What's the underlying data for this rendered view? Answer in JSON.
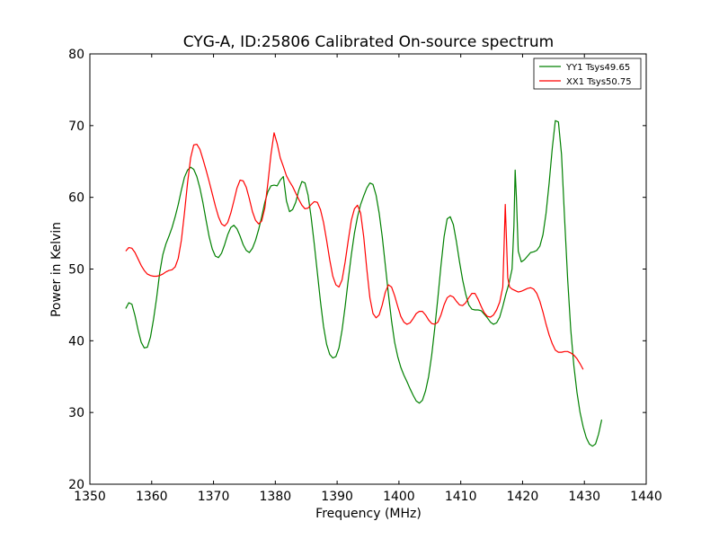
{
  "chart_data": {
    "type": "line",
    "title": "CYG-A, ID:25806 Calibrated On-source spectrum",
    "xlabel": "Frequency (MHz)",
    "ylabel": "Power in Kelvin",
    "xlim": [
      1350,
      1440
    ],
    "ylim": [
      20,
      80
    ],
    "xticks": [
      1350,
      1360,
      1370,
      1380,
      1390,
      1400,
      1410,
      1420,
      1430,
      1440
    ],
    "yticks": [
      20,
      30,
      40,
      50,
      60,
      70,
      80
    ],
    "grid": false,
    "legend_position": "top-right",
    "series": [
      {
        "name": "YY1 Tsys49.65",
        "color": "#008000",
        "points": [
          [
            1355.8,
            44.5
          ],
          [
            1356.3,
            45.3
          ],
          [
            1356.8,
            45.1
          ],
          [
            1357.3,
            43.5
          ],
          [
            1357.8,
            41.5
          ],
          [
            1358.3,
            39.8
          ],
          [
            1358.8,
            39.0
          ],
          [
            1359.3,
            39.1
          ],
          [
            1359.8,
            40.5
          ],
          [
            1360.3,
            43.0
          ],
          [
            1360.8,
            46.0
          ],
          [
            1361.3,
            49.5
          ],
          [
            1361.8,
            52.0
          ],
          [
            1362.3,
            53.5
          ],
          [
            1362.8,
            54.6
          ],
          [
            1363.3,
            55.8
          ],
          [
            1363.8,
            57.3
          ],
          [
            1364.3,
            59.0
          ],
          [
            1364.8,
            61.0
          ],
          [
            1365.3,
            62.8
          ],
          [
            1365.8,
            63.8
          ],
          [
            1366.3,
            64.2
          ],
          [
            1366.8,
            63.9
          ],
          [
            1367.3,
            62.9
          ],
          [
            1367.8,
            61.3
          ],
          [
            1368.3,
            59.2
          ],
          [
            1368.8,
            56.8
          ],
          [
            1369.3,
            54.5
          ],
          [
            1369.8,
            52.8
          ],
          [
            1370.3,
            51.8
          ],
          [
            1370.8,
            51.6
          ],
          [
            1371.3,
            52.2
          ],
          [
            1371.8,
            53.4
          ],
          [
            1372.3,
            54.8
          ],
          [
            1372.8,
            55.8
          ],
          [
            1373.3,
            56.1
          ],
          [
            1373.8,
            55.6
          ],
          [
            1374.3,
            54.6
          ],
          [
            1374.8,
            53.4
          ],
          [
            1375.3,
            52.6
          ],
          [
            1375.8,
            52.3
          ],
          [
            1376.3,
            52.9
          ],
          [
            1376.8,
            54.0
          ],
          [
            1377.3,
            55.5
          ],
          [
            1377.8,
            57.3
          ],
          [
            1378.3,
            59.3
          ],
          [
            1378.8,
            60.8
          ],
          [
            1379.3,
            61.6
          ],
          [
            1379.8,
            61.7
          ],
          [
            1380.3,
            61.6
          ],
          [
            1380.8,
            62.4
          ],
          [
            1381.3,
            62.9
          ],
          [
            1381.8,
            59.5
          ],
          [
            1382.3,
            58.0
          ],
          [
            1382.8,
            58.3
          ],
          [
            1383.3,
            59.3
          ],
          [
            1383.8,
            61.0
          ],
          [
            1384.3,
            62.2
          ],
          [
            1384.8,
            62.0
          ],
          [
            1385.3,
            60.3
          ],
          [
            1385.8,
            57.2
          ],
          [
            1386.3,
            53.5
          ],
          [
            1386.8,
            49.5
          ],
          [
            1387.3,
            45.5
          ],
          [
            1387.8,
            42.0
          ],
          [
            1388.3,
            39.5
          ],
          [
            1388.8,
            38.1
          ],
          [
            1389.3,
            37.6
          ],
          [
            1389.8,
            37.8
          ],
          [
            1390.3,
            39.0
          ],
          [
            1390.8,
            41.5
          ],
          [
            1391.3,
            44.8
          ],
          [
            1391.8,
            48.5
          ],
          [
            1392.3,
            52.0
          ],
          [
            1392.8,
            55.0
          ],
          [
            1393.3,
            57.3
          ],
          [
            1393.8,
            59.0
          ],
          [
            1394.3,
            60.2
          ],
          [
            1394.8,
            61.3
          ],
          [
            1395.3,
            62.0
          ],
          [
            1395.8,
            61.8
          ],
          [
            1396.3,
            60.3
          ],
          [
            1396.8,
            57.8
          ],
          [
            1397.3,
            54.5
          ],
          [
            1397.8,
            50.5
          ],
          [
            1398.3,
            46.5
          ],
          [
            1398.8,
            42.8
          ],
          [
            1399.3,
            39.8
          ],
          [
            1399.8,
            37.8
          ],
          [
            1400.3,
            36.3
          ],
          [
            1400.8,
            35.2
          ],
          [
            1401.3,
            34.3
          ],
          [
            1401.8,
            33.3
          ],
          [
            1402.3,
            32.4
          ],
          [
            1402.8,
            31.6
          ],
          [
            1403.3,
            31.3
          ],
          [
            1403.8,
            31.7
          ],
          [
            1404.3,
            33.0
          ],
          [
            1404.8,
            35.0
          ],
          [
            1405.3,
            38.0
          ],
          [
            1405.8,
            41.8
          ],
          [
            1406.3,
            46.0
          ],
          [
            1406.8,
            50.5
          ],
          [
            1407.3,
            54.5
          ],
          [
            1407.8,
            57.0
          ],
          [
            1408.3,
            57.3
          ],
          [
            1408.8,
            56.2
          ],
          [
            1409.3,
            53.8
          ],
          [
            1409.8,
            51.0
          ],
          [
            1410.3,
            48.5
          ],
          [
            1410.8,
            46.5
          ],
          [
            1411.3,
            45.0
          ],
          [
            1411.8,
            44.4
          ],
          [
            1412.3,
            44.3
          ],
          [
            1412.8,
            44.3
          ],
          [
            1413.3,
            44.2
          ],
          [
            1413.8,
            43.7
          ],
          [
            1414.3,
            43.2
          ],
          [
            1414.8,
            42.6
          ],
          [
            1415.3,
            42.3
          ],
          [
            1415.8,
            42.5
          ],
          [
            1416.3,
            43.3
          ],
          [
            1416.8,
            44.8
          ],
          [
            1417.3,
            46.5
          ],
          [
            1417.8,
            48.0
          ],
          [
            1418.3,
            50.0
          ],
          [
            1418.6,
            56.0
          ],
          [
            1418.8,
            63.8
          ],
          [
            1419.0,
            60.0
          ],
          [
            1419.3,
            52.5
          ],
          [
            1419.8,
            51.0
          ],
          [
            1420.3,
            51.3
          ],
          [
            1420.8,
            51.8
          ],
          [
            1421.3,
            52.3
          ],
          [
            1421.8,
            52.4
          ],
          [
            1422.3,
            52.6
          ],
          [
            1422.8,
            53.2
          ],
          [
            1423.3,
            54.8
          ],
          [
            1423.8,
            57.8
          ],
          [
            1424.3,
            62.0
          ],
          [
            1424.8,
            66.8
          ],
          [
            1425.3,
            70.7
          ],
          [
            1425.8,
            70.5
          ],
          [
            1426.3,
            66.0
          ],
          [
            1426.8,
            57.0
          ],
          [
            1427.3,
            48.5
          ],
          [
            1427.8,
            41.5
          ],
          [
            1428.3,
            36.5
          ],
          [
            1428.8,
            32.8
          ],
          [
            1429.3,
            30.0
          ],
          [
            1429.8,
            28.0
          ],
          [
            1430.3,
            26.5
          ],
          [
            1430.8,
            25.6
          ],
          [
            1431.3,
            25.3
          ],
          [
            1431.8,
            25.6
          ],
          [
            1432.3,
            27.0
          ],
          [
            1432.8,
            29.0
          ]
        ]
      },
      {
        "name": "XX1 Tsys50.75",
        "color": "#ff0000",
        "points": [
          [
            1355.8,
            52.5
          ],
          [
            1356.3,
            53.0
          ],
          [
            1356.8,
            52.9
          ],
          [
            1357.3,
            52.3
          ],
          [
            1357.8,
            51.4
          ],
          [
            1358.3,
            50.5
          ],
          [
            1358.8,
            49.8
          ],
          [
            1359.3,
            49.3
          ],
          [
            1359.8,
            49.1
          ],
          [
            1360.3,
            49.0
          ],
          [
            1360.8,
            49.0
          ],
          [
            1361.3,
            49.1
          ],
          [
            1361.8,
            49.3
          ],
          [
            1362.3,
            49.6
          ],
          [
            1362.8,
            49.8
          ],
          [
            1363.3,
            49.9
          ],
          [
            1363.8,
            50.3
          ],
          [
            1364.3,
            51.5
          ],
          [
            1364.8,
            54.0
          ],
          [
            1365.3,
            57.8
          ],
          [
            1365.8,
            62.0
          ],
          [
            1366.3,
            65.5
          ],
          [
            1366.8,
            67.3
          ],
          [
            1367.3,
            67.4
          ],
          [
            1367.8,
            66.7
          ],
          [
            1368.3,
            65.3
          ],
          [
            1368.8,
            63.8
          ],
          [
            1369.3,
            62.2
          ],
          [
            1369.8,
            60.5
          ],
          [
            1370.3,
            58.8
          ],
          [
            1370.8,
            57.3
          ],
          [
            1371.3,
            56.3
          ],
          [
            1371.8,
            56.0
          ],
          [
            1372.3,
            56.5
          ],
          [
            1372.8,
            57.8
          ],
          [
            1373.3,
            59.5
          ],
          [
            1373.8,
            61.3
          ],
          [
            1374.3,
            62.4
          ],
          [
            1374.8,
            62.3
          ],
          [
            1375.3,
            61.4
          ],
          [
            1375.8,
            59.8
          ],
          [
            1376.3,
            58.0
          ],
          [
            1376.8,
            56.8
          ],
          [
            1377.3,
            56.3
          ],
          [
            1377.8,
            56.7
          ],
          [
            1378.3,
            58.5
          ],
          [
            1378.8,
            62.0
          ],
          [
            1379.3,
            66.0
          ],
          [
            1379.8,
            69.0
          ],
          [
            1380.3,
            67.5
          ],
          [
            1380.8,
            65.5
          ],
          [
            1381.3,
            64.3
          ],
          [
            1381.8,
            63.0
          ],
          [
            1382.3,
            62.2
          ],
          [
            1382.8,
            61.5
          ],
          [
            1383.3,
            60.6
          ],
          [
            1383.8,
            59.7
          ],
          [
            1384.3,
            58.9
          ],
          [
            1384.8,
            58.4
          ],
          [
            1385.3,
            58.5
          ],
          [
            1385.8,
            59.0
          ],
          [
            1386.3,
            59.4
          ],
          [
            1386.8,
            59.3
          ],
          [
            1387.3,
            58.3
          ],
          [
            1387.8,
            56.5
          ],
          [
            1388.3,
            54.0
          ],
          [
            1388.8,
            51.3
          ],
          [
            1389.3,
            49.0
          ],
          [
            1389.8,
            47.8
          ],
          [
            1390.3,
            47.5
          ],
          [
            1390.8,
            48.5
          ],
          [
            1391.3,
            51.0
          ],
          [
            1391.8,
            54.0
          ],
          [
            1392.3,
            56.8
          ],
          [
            1392.8,
            58.4
          ],
          [
            1393.3,
            58.9
          ],
          [
            1393.8,
            57.8
          ],
          [
            1394.3,
            54.5
          ],
          [
            1394.8,
            50.0
          ],
          [
            1395.3,
            46.0
          ],
          [
            1395.8,
            43.8
          ],
          [
            1396.3,
            43.2
          ],
          [
            1396.8,
            43.6
          ],
          [
            1397.3,
            45.0
          ],
          [
            1397.8,
            46.8
          ],
          [
            1398.3,
            47.8
          ],
          [
            1398.8,
            47.5
          ],
          [
            1399.3,
            46.3
          ],
          [
            1399.8,
            44.8
          ],
          [
            1400.3,
            43.4
          ],
          [
            1400.8,
            42.6
          ],
          [
            1401.3,
            42.3
          ],
          [
            1401.8,
            42.5
          ],
          [
            1402.3,
            43.1
          ],
          [
            1402.8,
            43.8
          ],
          [
            1403.3,
            44.1
          ],
          [
            1403.8,
            44.1
          ],
          [
            1404.3,
            43.6
          ],
          [
            1404.8,
            42.9
          ],
          [
            1405.3,
            42.4
          ],
          [
            1405.8,
            42.3
          ],
          [
            1406.3,
            42.6
          ],
          [
            1406.8,
            43.6
          ],
          [
            1407.3,
            45.0
          ],
          [
            1407.8,
            46.0
          ],
          [
            1408.3,
            46.3
          ],
          [
            1408.8,
            46.1
          ],
          [
            1409.3,
            45.5
          ],
          [
            1409.8,
            45.0
          ],
          [
            1410.3,
            44.9
          ],
          [
            1410.8,
            45.3
          ],
          [
            1411.3,
            46.0
          ],
          [
            1411.8,
            46.6
          ],
          [
            1412.3,
            46.6
          ],
          [
            1412.8,
            45.8
          ],
          [
            1413.3,
            44.8
          ],
          [
            1413.8,
            43.9
          ],
          [
            1414.3,
            43.4
          ],
          [
            1414.8,
            43.3
          ],
          [
            1415.3,
            43.6
          ],
          [
            1415.8,
            44.3
          ],
          [
            1416.3,
            45.4
          ],
          [
            1416.8,
            47.5
          ],
          [
            1417.0,
            53.0
          ],
          [
            1417.2,
            59.0
          ],
          [
            1417.4,
            54.0
          ],
          [
            1417.6,
            48.8
          ],
          [
            1417.9,
            47.5
          ],
          [
            1418.3,
            47.2
          ],
          [
            1418.8,
            47.0
          ],
          [
            1419.3,
            46.8
          ],
          [
            1419.8,
            46.9
          ],
          [
            1420.3,
            47.1
          ],
          [
            1420.8,
            47.3
          ],
          [
            1421.3,
            47.4
          ],
          [
            1421.8,
            47.2
          ],
          [
            1422.3,
            46.6
          ],
          [
            1422.8,
            45.5
          ],
          [
            1423.3,
            44.0
          ],
          [
            1423.8,
            42.3
          ],
          [
            1424.3,
            40.8
          ],
          [
            1424.8,
            39.6
          ],
          [
            1425.3,
            38.7
          ],
          [
            1425.8,
            38.4
          ],
          [
            1426.3,
            38.4
          ],
          [
            1426.8,
            38.5
          ],
          [
            1427.3,
            38.5
          ],
          [
            1427.8,
            38.3
          ],
          [
            1428.3,
            38.0
          ],
          [
            1428.8,
            37.5
          ],
          [
            1429.3,
            36.8
          ],
          [
            1429.8,
            36.0
          ]
        ]
      }
    ]
  }
}
